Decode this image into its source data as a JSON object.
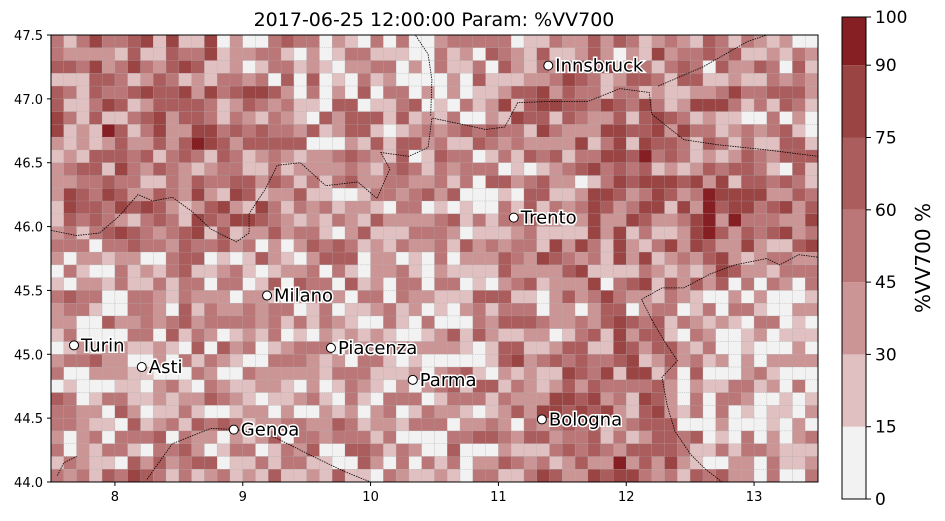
{
  "chart_data": {
    "type": "heatmap",
    "title": "2017-06-25 12:00:00 Param: %VV700",
    "x_axis": {
      "range": [
        7.5,
        13.5
      ],
      "ticks": [
        "8",
        "9",
        "10",
        "11",
        "12",
        "13"
      ],
      "tick_values": [
        8,
        9,
        10,
        11,
        12,
        13
      ]
    },
    "y_axis": {
      "range": [
        44.0,
        47.5
      ],
      "ticks": [
        "44.0",
        "44.5",
        "45.0",
        "45.5",
        "46.0",
        "46.5",
        "47.0",
        "47.5"
      ],
      "tick_values": [
        44.0,
        44.5,
        45.0,
        45.5,
        46.0,
        46.5,
        47.0,
        47.5
      ]
    },
    "grid": {
      "cell_deg": 0.1,
      "columns": 60,
      "rows": 35,
      "seed": 7
    },
    "colorbar": {
      "label": "%VV700  %",
      "boundaries": [
        0,
        15,
        30,
        45,
        60,
        75,
        90,
        100
      ],
      "boundary_labels": [
        "0",
        "15",
        "30",
        "45",
        "60",
        "75",
        "90",
        "100"
      ],
      "colors": [
        "#f2f2f2",
        "#e0c0c0",
        "#cc9595",
        "#bb7777",
        "#ab5c5c",
        "#9a4444",
        "#861f24",
        "#6b0000"
      ]
    },
    "cities": [
      {
        "name": "Innsbruck",
        "lon": 11.39,
        "lat": 47.26
      },
      {
        "name": "Trento",
        "lon": 11.12,
        "lat": 46.07
      },
      {
        "name": "Milano",
        "lon": 9.19,
        "lat": 45.46
      },
      {
        "name": "Turin",
        "lon": 7.68,
        "lat": 45.07
      },
      {
        "name": "Asti",
        "lon": 8.21,
        "lat": 44.9
      },
      {
        "name": "Piacenza",
        "lon": 9.69,
        "lat": 45.05
      },
      {
        "name": "Parma",
        "lon": 10.33,
        "lat": 44.8
      },
      {
        "name": "Genoa",
        "lon": 8.93,
        "lat": 44.41
      },
      {
        "name": "Bologna",
        "lon": 11.34,
        "lat": 44.49
      }
    ],
    "borders": [
      [
        [
          7.5,
          45.97
        ],
        [
          7.7,
          45.93
        ],
        [
          7.88,
          45.95
        ],
        [
          8.03,
          46.08
        ],
        [
          8.18,
          46.25
        ],
        [
          8.3,
          46.2
        ],
        [
          8.45,
          46.23
        ],
        [
          8.6,
          46.12
        ],
        [
          8.75,
          45.98
        ],
        [
          8.95,
          45.88
        ],
        [
          9.05,
          45.95
        ],
        [
          9.05,
          46.1
        ],
        [
          9.18,
          46.3
        ],
        [
          9.27,
          46.48
        ],
        [
          9.45,
          46.5
        ],
        [
          9.65,
          46.32
        ],
        [
          9.9,
          46.35
        ],
        [
          10.05,
          46.22
        ],
        [
          10.15,
          46.45
        ],
        [
          10.08,
          46.58
        ],
        [
          10.3,
          46.55
        ],
        [
          10.45,
          46.62
        ],
        [
          10.48,
          46.85
        ],
        [
          10.72,
          46.8
        ],
        [
          10.9,
          46.76
        ],
        [
          11.05,
          46.78
        ],
        [
          11.15,
          46.97
        ],
        [
          11.4,
          46.98
        ],
        [
          11.7,
          46.98
        ],
        [
          11.95,
          47.08
        ],
        [
          12.18,
          47.05
        ],
        [
          12.2,
          46.88
        ],
        [
          12.45,
          46.68
        ],
        [
          12.72,
          46.64
        ],
        [
          13.1,
          46.6
        ],
        [
          13.5,
          46.55
        ]
      ],
      [
        [
          10.47,
          46.87
        ],
        [
          10.48,
          47.15
        ],
        [
          10.45,
          47.35
        ],
        [
          10.35,
          47.5
        ]
      ],
      [
        [
          12.25,
          47.1
        ],
        [
          12.6,
          47.25
        ],
        [
          12.95,
          47.45
        ],
        [
          13.1,
          47.5
        ]
      ],
      [
        [
          13.5,
          46.52
        ],
        [
          13.68,
          46.35
        ],
        [
          13.5,
          46.2
        ]
      ],
      [
        [
          12.2,
          45.27
        ],
        [
          12.12,
          45.43
        ],
        [
          12.28,
          45.52
        ],
        [
          12.45,
          45.52
        ],
        [
          12.66,
          45.63
        ],
        [
          12.85,
          45.7
        ],
        [
          13.1,
          45.75
        ],
        [
          13.2,
          45.7
        ],
        [
          13.35,
          45.78
        ],
        [
          13.5,
          45.76
        ]
      ],
      [
        [
          12.2,
          45.27
        ],
        [
          12.3,
          45.1
        ],
        [
          12.4,
          44.95
        ],
        [
          12.28,
          44.82
        ],
        [
          12.32,
          44.6
        ],
        [
          12.38,
          44.4
        ],
        [
          12.5,
          44.22
        ],
        [
          12.62,
          44.1
        ],
        [
          12.75,
          44.0
        ]
      ],
      [
        [
          8.25,
          44.02
        ],
        [
          8.45,
          44.3
        ],
        [
          8.75,
          44.42
        ],
        [
          8.95,
          44.41
        ],
        [
          9.25,
          44.35
        ],
        [
          9.55,
          44.2
        ],
        [
          9.8,
          44.08
        ],
        [
          10.0,
          44.0
        ]
      ],
      [
        [
          7.55,
          44.05
        ],
        [
          7.6,
          44.15
        ],
        [
          7.7,
          44.2
        ]
      ]
    ]
  }
}
